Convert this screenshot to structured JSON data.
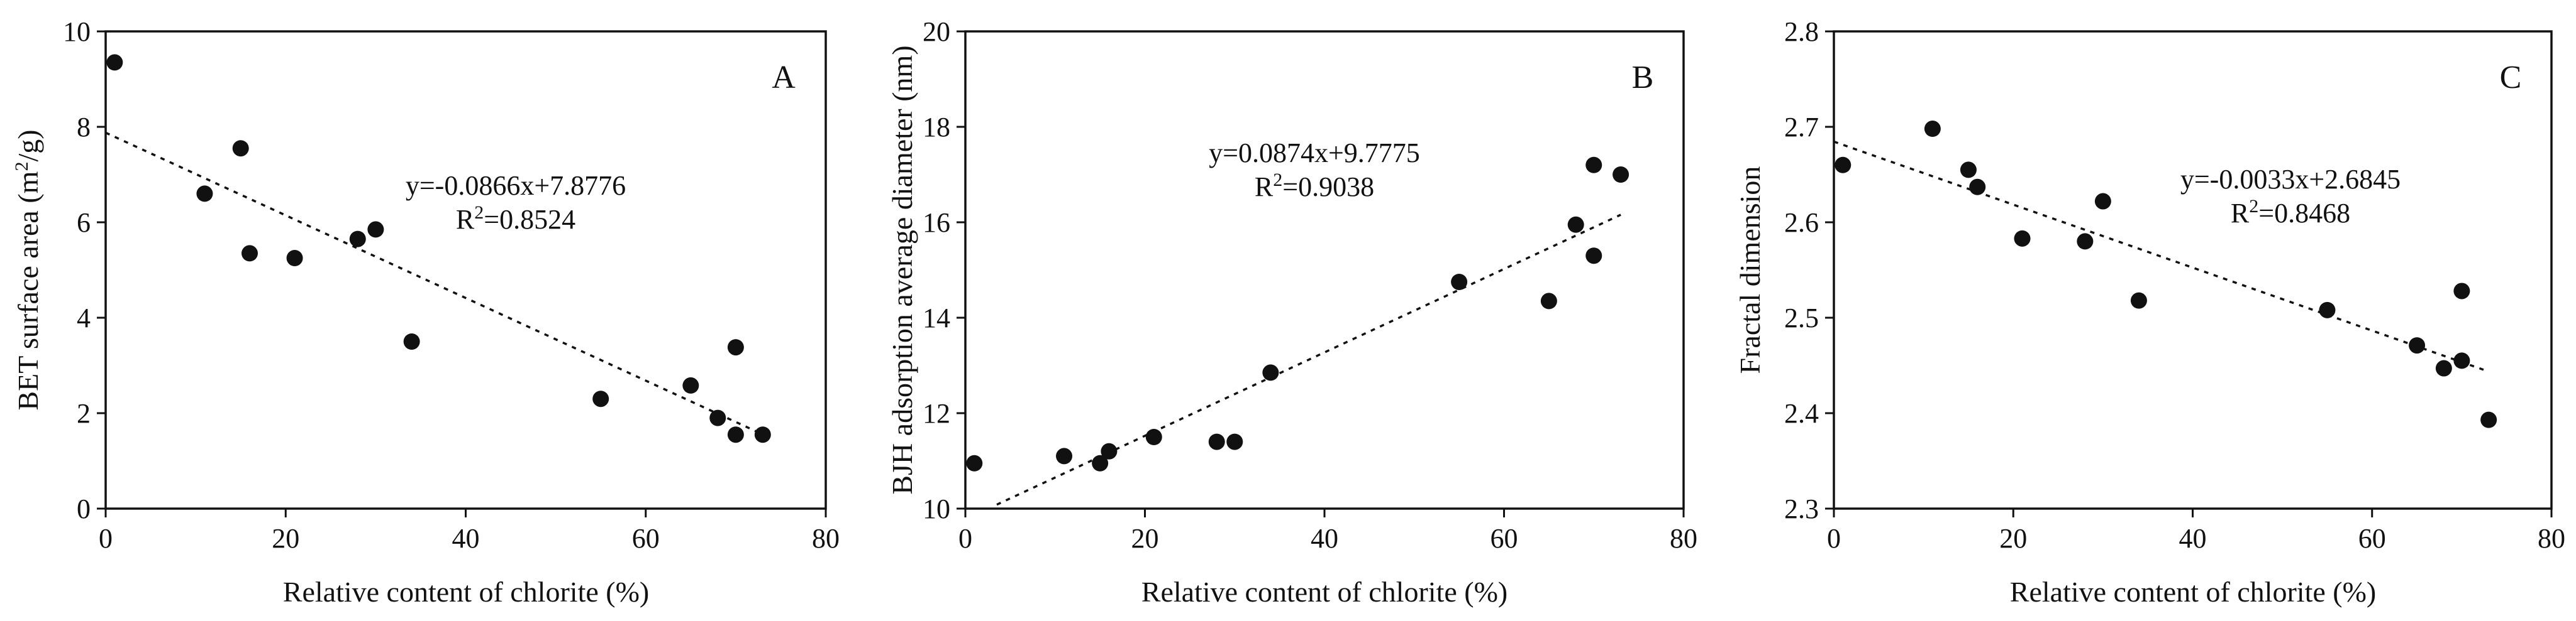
{
  "chart_data": [
    {
      "id": "A",
      "type": "scatter",
      "panel_label": "A",
      "xlabel": "Relative content of chlorite (%)",
      "ylabel_main": "BET surface area (m",
      "ylabel_sup": "2",
      "ylabel_tail": "/g)",
      "xlim": [
        0,
        80
      ],
      "ylim": [
        0,
        10
      ],
      "xticks": [
        0,
        20,
        40,
        60,
        80
      ],
      "yticks": [
        0,
        2,
        4,
        6,
        8,
        10
      ],
      "x_tick_labels": [
        "0",
        "20",
        "40",
        "60",
        "80"
      ],
      "y_tick_labels": [
        "0",
        "2",
        "4",
        "6",
        "8",
        "10"
      ],
      "equation": "y=-0.0866x+7.8776",
      "r2_prefix": "R",
      "r2_sup": "2",
      "r2_value": "=0.8524",
      "fit": {
        "slope": -0.0866,
        "intercept": 7.8776,
        "x_range": [
          0,
          73
        ]
      },
      "x": [
        1,
        11,
        15,
        16,
        21,
        28,
        30,
        34,
        55,
        65,
        68,
        70,
        70,
        73
      ],
      "y": [
        9.35,
        6.6,
        7.55,
        5.35,
        5.25,
        5.65,
        5.85,
        3.5,
        2.3,
        2.58,
        1.9,
        3.38,
        1.55,
        1.55
      ]
    },
    {
      "id": "B",
      "type": "scatter",
      "panel_label": "B",
      "xlabel": "Relative content of chlorite (%)",
      "ylabel_main": "BJH adsorption average diameter (nm)",
      "ylabel_sup": "",
      "ylabel_tail": "",
      "xlim": [
        0,
        80
      ],
      "ylim": [
        10,
        20
      ],
      "xticks": [
        0,
        20,
        40,
        60,
        80
      ],
      "yticks": [
        10,
        12,
        14,
        16,
        18,
        20
      ],
      "x_tick_labels": [
        "0",
        "20",
        "40",
        "60",
        "80"
      ],
      "y_tick_labels": [
        "10",
        "12",
        "14",
        "16",
        "18",
        "20"
      ],
      "equation": "y=0.0874x+9.7775",
      "r2_prefix": "R",
      "r2_sup": "2",
      "r2_value": "=0.9038",
      "fit": {
        "slope": 0.0874,
        "intercept": 9.7775,
        "x_range": [
          3.5,
          73
        ]
      },
      "x": [
        1,
        11,
        15,
        16,
        21,
        28,
        30,
        34,
        55,
        65,
        68,
        70,
        70,
        73
      ],
      "y": [
        10.95,
        11.1,
        10.95,
        11.2,
        11.5,
        11.4,
        11.4,
        12.85,
        14.75,
        14.35,
        15.95,
        17.2,
        15.3,
        17.0
      ]
    },
    {
      "id": "C",
      "type": "scatter",
      "panel_label": "C",
      "xlabel": "Relative content of chlorite (%)",
      "ylabel_main": "Fractal dimension",
      "ylabel_sup": "",
      "ylabel_tail": "",
      "xlim": [
        0,
        80
      ],
      "ylim": [
        2.3,
        2.8
      ],
      "xticks": [
        0,
        20,
        40,
        60,
        80
      ],
      "yticks": [
        2.3,
        2.4,
        2.5,
        2.6,
        2.7,
        2.8
      ],
      "x_tick_labels": [
        "0",
        "20",
        "40",
        "60",
        "80"
      ],
      "y_tick_labels": [
        "2.3",
        "2.4",
        "2.5",
        "2.6",
        "2.7",
        "2.8"
      ],
      "equation": "y=-0.0033x+2.6845",
      "r2_prefix": "R",
      "r2_sup": "2",
      "r2_value": "=0.8468",
      "fit": {
        "slope": -0.0033,
        "intercept": 2.6845,
        "x_range": [
          0,
          73
        ]
      },
      "x": [
        1,
        11,
        15,
        16,
        21,
        28,
        30,
        34,
        55,
        65,
        68,
        70,
        70,
        73
      ],
      "y": [
        2.66,
        2.698,
        2.655,
        2.637,
        2.583,
        2.58,
        2.622,
        2.518,
        2.508,
        2.471,
        2.447,
        2.528,
        2.455,
        2.393
      ]
    }
  ]
}
